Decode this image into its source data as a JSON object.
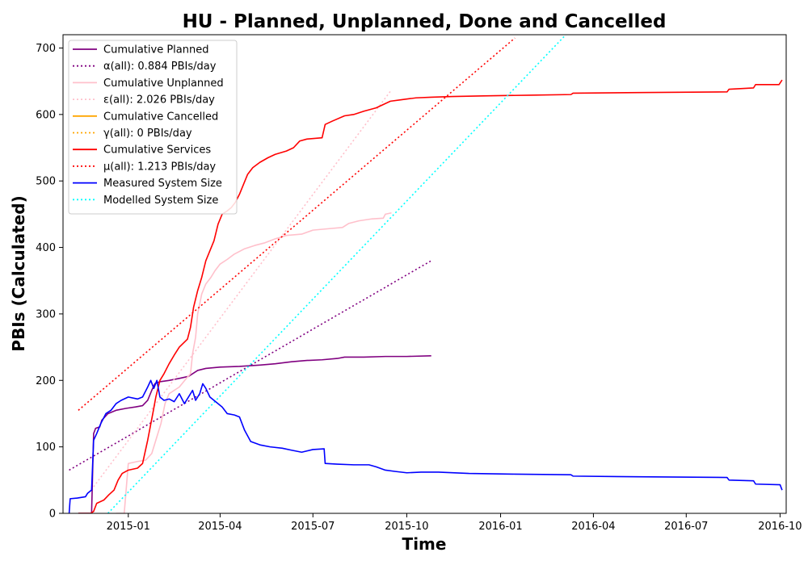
{
  "chart_data": {
    "type": "line",
    "title": "HU - Planned, Unplanned, Done  and Cancelled",
    "xlabel": "Time",
    "ylabel": "PBIs (Calculated)",
    "x_type": "date",
    "xlim": [
      "2014-10-29",
      "2016-10-07"
    ],
    "ylim": [
      0,
      720
    ],
    "x_ticks": [
      "2015-01",
      "2015-04",
      "2015-07",
      "2015-10",
      "2016-01",
      "2016-04",
      "2016-07",
      "2016-10"
    ],
    "y_ticks": [
      0,
      100,
      200,
      300,
      400,
      500,
      600,
      700
    ],
    "grid": false,
    "legend_position": "top-left",
    "series": [
      {
        "name": "Cumulative Planned",
        "color": "#800080",
        "style": "solid",
        "points": [
          [
            "2014-11-13",
            0
          ],
          [
            "2014-11-26",
            0
          ],
          [
            "2014-11-28",
            120
          ],
          [
            "2014-11-30",
            128
          ],
          [
            "2014-12-04",
            130
          ],
          [
            "2014-12-06",
            140
          ],
          [
            "2014-12-12",
            150
          ],
          [
            "2014-12-20",
            155
          ],
          [
            "2014-12-30",
            158
          ],
          [
            "2015-01-08",
            160
          ],
          [
            "2015-01-15",
            162
          ],
          [
            "2015-01-20",
            170
          ],
          [
            "2015-01-24",
            185
          ],
          [
            "2015-01-27",
            195
          ],
          [
            "2015-02-01",
            198
          ],
          [
            "2015-02-10",
            200
          ],
          [
            "2015-02-20",
            203
          ],
          [
            "2015-03-01",
            206
          ],
          [
            "2015-03-05",
            210
          ],
          [
            "2015-03-10",
            215
          ],
          [
            "2015-03-18",
            218
          ],
          [
            "2015-04-01",
            220
          ],
          [
            "2015-04-20",
            221
          ],
          [
            "2015-05-10",
            223
          ],
          [
            "2015-05-25",
            225
          ],
          [
            "2015-06-10",
            228
          ],
          [
            "2015-06-25",
            230
          ],
          [
            "2015-07-10",
            231
          ],
          [
            "2015-07-25",
            233
          ],
          [
            "2015-08-01",
            235
          ],
          [
            "2015-08-20",
            235
          ],
          [
            "2015-09-10",
            236
          ],
          [
            "2015-10-01",
            236
          ],
          [
            "2015-10-25",
            237
          ]
        ]
      },
      {
        "name": "α(all): 0.884 PBIs/day",
        "color": "#800080",
        "style": "dotted",
        "points": [
          [
            "2014-11-04",
            65
          ],
          [
            "2015-10-25",
            380
          ]
        ]
      },
      {
        "name": "Cumulative Unplanned",
        "color": "#ffc0cb",
        "style": "solid",
        "points": [
          [
            "2014-12-20",
            0
          ],
          [
            "2014-12-28",
            0
          ],
          [
            "2015-01-01",
            75
          ],
          [
            "2015-01-10",
            78
          ],
          [
            "2015-01-18",
            80
          ],
          [
            "2015-01-24",
            90
          ],
          [
            "2015-01-28",
            110
          ],
          [
            "2015-02-02",
            135
          ],
          [
            "2015-02-06",
            165
          ],
          [
            "2015-02-10",
            180
          ],
          [
            "2015-02-15",
            185
          ],
          [
            "2015-02-20",
            190
          ],
          [
            "2015-02-28",
            205
          ],
          [
            "2015-03-03",
            210
          ],
          [
            "2015-03-05",
            240
          ],
          [
            "2015-03-08",
            265
          ],
          [
            "2015-03-10",
            300
          ],
          [
            "2015-03-14",
            330
          ],
          [
            "2015-03-18",
            345
          ],
          [
            "2015-03-23",
            355
          ],
          [
            "2015-03-27",
            365
          ],
          [
            "2015-04-01",
            375
          ],
          [
            "2015-04-08",
            382
          ],
          [
            "2015-04-15",
            390
          ],
          [
            "2015-04-25",
            398
          ],
          [
            "2015-05-05",
            403
          ],
          [
            "2015-05-15",
            407
          ],
          [
            "2015-05-25",
            413
          ],
          [
            "2015-06-05",
            418
          ],
          [
            "2015-06-20",
            420
          ],
          [
            "2015-07-01",
            426
          ],
          [
            "2015-07-15",
            428
          ],
          [
            "2015-07-30",
            430
          ],
          [
            "2015-08-05",
            436
          ],
          [
            "2015-08-15",
            440
          ],
          [
            "2015-08-28",
            443
          ],
          [
            "2015-09-08",
            444
          ],
          [
            "2015-09-10",
            450
          ],
          [
            "2015-09-16",
            452
          ]
        ]
      },
      {
        "name": "ε(all): 2.026 PBIs/day",
        "color": "#ffc0cb",
        "style": "dotted",
        "points": [
          [
            "2014-11-28",
            40
          ],
          [
            "2015-09-15",
            635
          ]
        ]
      },
      {
        "name": "Cumulative Cancelled",
        "color": "#ffa500",
        "style": "solid",
        "points": []
      },
      {
        "name": "γ(all): 0 PBIs/day",
        "color": "#ffa500",
        "style": "dotted",
        "points": []
      },
      {
        "name": "Cumulative Services",
        "color": "#ff0000",
        "style": "solid",
        "points": [
          [
            "2014-11-13",
            0
          ],
          [
            "2014-11-25",
            0
          ],
          [
            "2014-11-28",
            3
          ],
          [
            "2014-12-01",
            15
          ],
          [
            "2014-12-08",
            20
          ],
          [
            "2014-12-13",
            28
          ],
          [
            "2014-12-18",
            35
          ],
          [
            "2014-12-22",
            50
          ],
          [
            "2014-12-26",
            60
          ],
          [
            "2015-01-01",
            65
          ],
          [
            "2015-01-10",
            68
          ],
          [
            "2015-01-15",
            75
          ],
          [
            "2015-01-20",
            110
          ],
          [
            "2015-01-25",
            150
          ],
          [
            "2015-01-28",
            175
          ],
          [
            "2015-02-01",
            200
          ],
          [
            "2015-02-05",
            210
          ],
          [
            "2015-02-10",
            225
          ],
          [
            "2015-02-15",
            238
          ],
          [
            "2015-02-20",
            250
          ],
          [
            "2015-02-28",
            262
          ],
          [
            "2015-03-03",
            280
          ],
          [
            "2015-03-06",
            310
          ],
          [
            "2015-03-10",
            335
          ],
          [
            "2015-03-14",
            355
          ],
          [
            "2015-03-18",
            380
          ],
          [
            "2015-03-22",
            395
          ],
          [
            "2015-03-26",
            410
          ],
          [
            "2015-03-30",
            435
          ],
          [
            "2015-04-03",
            450
          ],
          [
            "2015-04-08",
            455
          ],
          [
            "2015-04-12",
            460
          ],
          [
            "2015-04-16",
            468
          ],
          [
            "2015-04-20",
            480
          ],
          [
            "2015-04-24",
            495
          ],
          [
            "2015-04-28",
            510
          ],
          [
            "2015-05-03",
            520
          ],
          [
            "2015-05-10",
            528
          ],
          [
            "2015-05-18",
            535
          ],
          [
            "2015-05-25",
            540
          ],
          [
            "2015-06-05",
            545
          ],
          [
            "2015-06-12",
            550
          ],
          [
            "2015-06-18",
            560
          ],
          [
            "2015-06-25",
            563
          ],
          [
            "2015-07-10",
            565
          ],
          [
            "2015-07-13",
            585
          ],
          [
            "2015-07-20",
            590
          ],
          [
            "2015-08-01",
            598
          ],
          [
            "2015-08-10",
            600
          ],
          [
            "2015-08-20",
            605
          ],
          [
            "2015-09-01",
            610
          ],
          [
            "2015-09-08",
            615
          ],
          [
            "2015-09-15",
            620
          ],
          [
            "2015-09-25",
            622
          ],
          [
            "2015-10-10",
            625
          ],
          [
            "2015-10-25",
            626
          ],
          [
            "2015-11-15",
            627
          ],
          [
            "2015-12-15",
            628
          ],
          [
            "2016-01-30",
            629
          ],
          [
            "2016-03-10",
            630
          ],
          [
            "2016-03-12",
            632
          ],
          [
            "2016-05-15",
            633
          ],
          [
            "2016-08-10",
            634
          ],
          [
            "2016-08-12",
            638
          ],
          [
            "2016-09-05",
            640
          ],
          [
            "2016-09-07",
            645
          ],
          [
            "2016-09-30",
            645
          ],
          [
            "2016-10-03",
            652
          ]
        ]
      },
      {
        "name": "μ(all): 1.213 PBIs/day",
        "color": "#ff0000",
        "style": "dotted",
        "points": [
          [
            "2014-11-13",
            155
          ],
          [
            "2016-01-15",
            715
          ]
        ]
      },
      {
        "name": "Measured System Size",
        "color": "#0000ff",
        "style": "solid",
        "points": [
          [
            "2014-11-04",
            0
          ],
          [
            "2014-11-05",
            22
          ],
          [
            "2014-11-12",
            23
          ],
          [
            "2014-11-20",
            25
          ],
          [
            "2014-11-22",
            30
          ],
          [
            "2014-11-26",
            35
          ],
          [
            "2014-11-28",
            110
          ],
          [
            "2014-12-01",
            120
          ],
          [
            "2014-12-05",
            135
          ],
          [
            "2014-12-10",
            150
          ],
          [
            "2014-12-15",
            155
          ],
          [
            "2014-12-20",
            165
          ],
          [
            "2014-12-25",
            170
          ],
          [
            "2015-01-01",
            175
          ],
          [
            "2015-01-10",
            172
          ],
          [
            "2015-01-15",
            175
          ],
          [
            "2015-01-20",
            190
          ],
          [
            "2015-01-23",
            200
          ],
          [
            "2015-01-26",
            188
          ],
          [
            "2015-01-29",
            200
          ],
          [
            "2015-02-01",
            175
          ],
          [
            "2015-02-05",
            170
          ],
          [
            "2015-02-10",
            172
          ],
          [
            "2015-02-15",
            168
          ],
          [
            "2015-02-20",
            180
          ],
          [
            "2015-02-25",
            165
          ],
          [
            "2015-03-01",
            175
          ],
          [
            "2015-03-05",
            185
          ],
          [
            "2015-03-08",
            170
          ],
          [
            "2015-03-12",
            180
          ],
          [
            "2015-03-15",
            195
          ],
          [
            "2015-03-18",
            188
          ],
          [
            "2015-03-22",
            175
          ],
          [
            "2015-03-26",
            170
          ],
          [
            "2015-03-30",
            165
          ],
          [
            "2015-04-03",
            160
          ],
          [
            "2015-04-08",
            150
          ],
          [
            "2015-04-15",
            148
          ],
          [
            "2015-04-20",
            145
          ],
          [
            "2015-04-25",
            125
          ],
          [
            "2015-05-01",
            108
          ],
          [
            "2015-05-10",
            103
          ],
          [
            "2015-05-20",
            100
          ],
          [
            "2015-06-01",
            98
          ],
          [
            "2015-06-10",
            95
          ],
          [
            "2015-06-20",
            92
          ],
          [
            "2015-07-01",
            96
          ],
          [
            "2015-07-12",
            97
          ],
          [
            "2015-07-13",
            75
          ],
          [
            "2015-07-25",
            74
          ],
          [
            "2015-08-10",
            73
          ],
          [
            "2015-08-25",
            73
          ],
          [
            "2015-09-01",
            70
          ],
          [
            "2015-09-10",
            65
          ],
          [
            "2015-09-20",
            63
          ],
          [
            "2015-10-01",
            61
          ],
          [
            "2015-10-15",
            62
          ],
          [
            "2015-11-01",
            62
          ],
          [
            "2015-12-01",
            60
          ],
          [
            "2016-01-15",
            59
          ],
          [
            "2016-03-10",
            58
          ],
          [
            "2016-03-12",
            56
          ],
          [
            "2016-05-15",
            55
          ],
          [
            "2016-08-10",
            54
          ],
          [
            "2016-08-12",
            50
          ],
          [
            "2016-09-05",
            49
          ],
          [
            "2016-09-07",
            44
          ],
          [
            "2016-10-01",
            43
          ],
          [
            "2016-10-03",
            35
          ]
        ]
      },
      {
        "name": "Modelled System Size",
        "color": "#00ffff",
        "style": "dotted",
        "points": [
          [
            "2014-12-12",
            0
          ],
          [
            "2016-03-05",
            720
          ]
        ]
      }
    ]
  }
}
